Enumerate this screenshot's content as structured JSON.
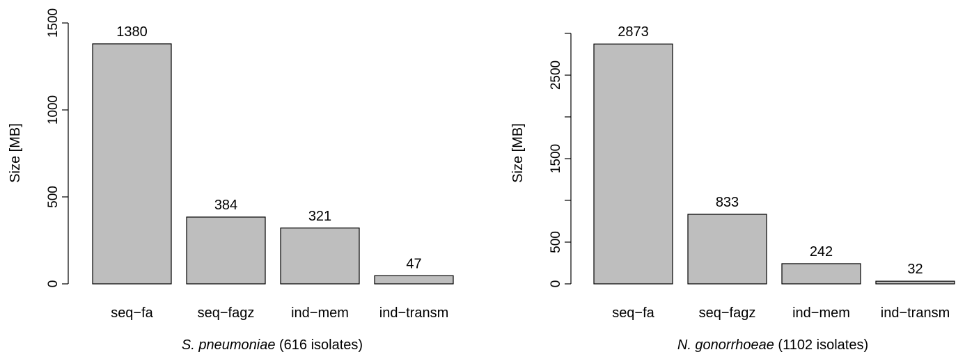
{
  "colors": {
    "bar_fill": "#bebebe",
    "bar_stroke": "#000000",
    "background": "#ffffff"
  },
  "chart_data": [
    {
      "type": "bar",
      "categories": [
        "seq−fa",
        "seq−fagz",
        "ind−mem",
        "ind−transm"
      ],
      "values": [
        1380,
        384,
        321,
        47
      ],
      "data_labels": [
        "1380",
        "384",
        "321",
        "47"
      ],
      "ylabel": "Size [MB]",
      "xlabel_italic": "S. pneumoniae",
      "xlabel_rest": " (616 isolates)",
      "ylim": [
        0,
        1500
      ],
      "yticks": [
        0,
        500,
        1000,
        1500
      ],
      "ytick_labels": [
        "0",
        "500",
        "1000",
        "1500"
      ],
      "grid": false,
      "legend": "none"
    },
    {
      "type": "bar",
      "categories": [
        "seq−fa",
        "seq−fagz",
        "ind−mem",
        "ind−transm"
      ],
      "values": [
        2873,
        833,
        242,
        32
      ],
      "data_labels": [
        "2873",
        "833",
        "242",
        "32"
      ],
      "ylabel": "Size [MB]",
      "xlabel_italic": "N. gonorrhoeae",
      "xlabel_rest": " (1102 isolates)",
      "ylim": [
        0,
        3000
      ],
      "yticks": [
        0,
        500,
        1000,
        1500,
        2000,
        2500,
        3000
      ],
      "ytick_labels": [
        "0",
        "500",
        "",
        "1500",
        "",
        "2500",
        ""
      ],
      "grid": false,
      "legend": "none"
    }
  ]
}
